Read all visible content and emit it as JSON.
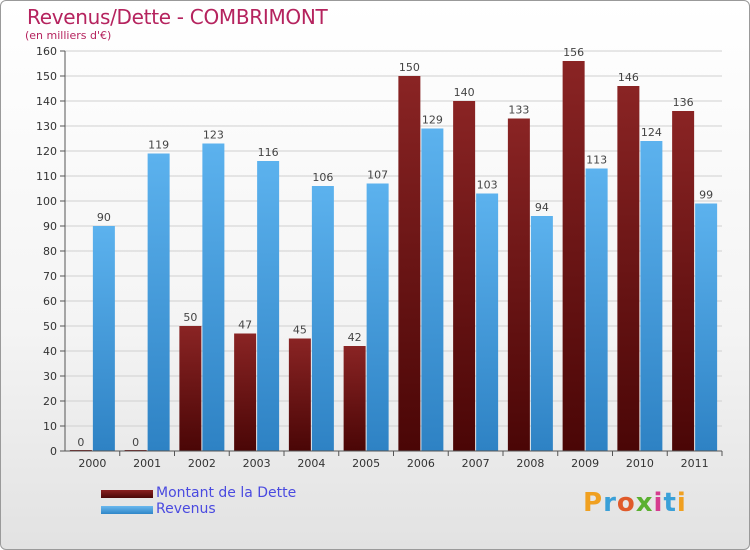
{
  "title": "Revenus/Dette - COMBRIMONT",
  "subtitle": "(en milliers d'€)",
  "logo": "Proxiti",
  "colors": {
    "dette": "#6b0f0f",
    "revenus": "#3f9fe0",
    "title": "#b5235e",
    "legend_text": "#4a4ae0"
  },
  "chart_data": {
    "type": "bar",
    "title": "Revenus/Dette - COMBRIMONT",
    "ylabel": "(en milliers d'€)",
    "xlabel": "",
    "ylim": [
      0,
      160
    ],
    "yticks": [
      0,
      10,
      20,
      30,
      40,
      50,
      60,
      70,
      80,
      90,
      100,
      110,
      120,
      130,
      140,
      150,
      160
    ],
    "grid": true,
    "legend_position": "bottom-left",
    "categories": [
      "2000",
      "2001",
      "2002",
      "2003",
      "2004",
      "2005",
      "2006",
      "2007",
      "2008",
      "2009",
      "2010",
      "2011"
    ],
    "series": [
      {
        "name": "Montant de la Dette",
        "values": [
          0,
          0,
          50,
          47,
          45,
          42,
          150,
          140,
          133,
          156,
          146,
          136
        ]
      },
      {
        "name": "Revenus",
        "values": [
          90,
          119,
          123,
          116,
          106,
          107,
          129,
          103,
          94,
          113,
          124,
          99
        ]
      }
    ]
  }
}
